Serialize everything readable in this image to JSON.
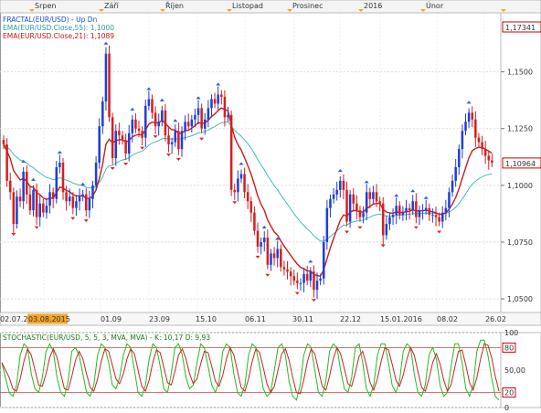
{
  "chart_data": [
    {
      "type": "candlestick",
      "symbol": "EUR/USD",
      "legend": [
        {
          "text": "FRACTAL(EUR/USD) - Up  Dn",
          "color": "#1a4fd0"
        },
        {
          "text": "EMA(EUR/USD.Close,55): 1,1000",
          "color": "#2a9d9d"
        },
        {
          "text": "EMA(EUR/USD.Close,21): 1,1089",
          "color": "#cc1111"
        }
      ],
      "top_axis_months": [
        "Srpen",
        "Září",
        "Říjen",
        "Listopad",
        "Prosinec",
        "2016",
        "Únor"
      ],
      "x_ticks": [
        "02.07.2015",
        "03.08.2015",
        "01.09",
        "23.09",
        "15.10",
        "06.11",
        "30.11",
        "22.12",
        "15.01.2016",
        "08.02",
        "26.02"
      ],
      "highlighted_date": "03.08.2015",
      "y_ticks": [
        "1,0500",
        "1,0750",
        "1,1000",
        "1,1250",
        "1,1500"
      ],
      "ylim": [
        1.044,
        1.176
      ],
      "last_price_label": "1,10964",
      "high_price_label": "1,17341",
      "candles_close": [
        1.118,
        1.102,
        1.097,
        1.083,
        1.095,
        1.093,
        1.106,
        1.096,
        1.089,
        1.098,
        1.086,
        1.092,
        1.088,
        1.091,
        1.097,
        1.094,
        1.108,
        1.11,
        1.097,
        1.093,
        1.095,
        1.09,
        1.093,
        1.095,
        1.096,
        1.089,
        1.094,
        1.1,
        1.11,
        1.126,
        1.137,
        1.158,
        1.13,
        1.112,
        1.124,
        1.122,
        1.12,
        1.114,
        1.123,
        1.129,
        1.125,
        1.124,
        1.121,
        1.135,
        1.138,
        1.132,
        1.126,
        1.128,
        1.133,
        1.122,
        1.118,
        1.119,
        1.124,
        1.116,
        1.124,
        1.128,
        1.126,
        1.129,
        1.131,
        1.134,
        1.125,
        1.129,
        1.134,
        1.138,
        1.136,
        1.14,
        1.139,
        1.13,
        1.131,
        1.098,
        1.097,
        1.103,
        1.105,
        1.097,
        1.093,
        1.088,
        1.08,
        1.073,
        1.075,
        1.077,
        1.065,
        1.07,
        1.068,
        1.072,
        1.064,
        1.063,
        1.062,
        1.06,
        1.058,
        1.057,
        1.057,
        1.061,
        1.058,
        1.062,
        1.054,
        1.058,
        1.059,
        1.075,
        1.09,
        1.094,
        1.096,
        1.098,
        1.102,
        1.098,
        1.084,
        1.096,
        1.092,
        1.089,
        1.086,
        1.088,
        1.097,
        1.094,
        1.097,
        1.093,
        1.092,
        1.078,
        1.083,
        1.086,
        1.087,
        1.091,
        1.087,
        1.088,
        1.09,
        1.089,
        1.093,
        1.086,
        1.089,
        1.089,
        1.09,
        1.087,
        1.087,
        1.086,
        1.084,
        1.088,
        1.09,
        1.097,
        1.102,
        1.108,
        1.116,
        1.124,
        1.128,
        1.132,
        1.129,
        1.121,
        1.119,
        1.116,
        1.113,
        1.111,
        1.11
      ],
      "fractals_up_count": 32,
      "fractals_down_count": 22
    },
    {
      "type": "line",
      "title": "STOCHASTIC(EUR/USD, 5, 5, 3, MVA, MVA) - K: 10,17  D: 9,93",
      "series": [
        {
          "name": "K",
          "color": "#22cc22"
        },
        {
          "name": "D",
          "color": "#cc2222"
        }
      ],
      "y_ticks": [
        "0",
        "20",
        "50,00",
        "80",
        "100"
      ],
      "ylim": [
        0,
        100
      ],
      "levels": [
        20,
        80
      ],
      "k_values": [
        60,
        40,
        20,
        15,
        30,
        70,
        85,
        80,
        45,
        25,
        20,
        40,
        75,
        85,
        75,
        40,
        20,
        15,
        35,
        75,
        80,
        70,
        45,
        20,
        15,
        30,
        70,
        85,
        80,
        60,
        30,
        25,
        40,
        70,
        85,
        80,
        50,
        20,
        15,
        30,
        65,
        85,
        80,
        55,
        25,
        20,
        45,
        80,
        85,
        70,
        40,
        25,
        30,
        60,
        85,
        80,
        55,
        30,
        20,
        35,
        75,
        85,
        80,
        45,
        20,
        15,
        30,
        70,
        85,
        80,
        55,
        25,
        15,
        20,
        50,
        80,
        85,
        70,
        35,
        15,
        10,
        30,
        70,
        85,
        80,
        50,
        20,
        15,
        35,
        75,
        85,
        80,
        50,
        25,
        20,
        40,
        80,
        85,
        60,
        25,
        15,
        30,
        70,
        85,
        85,
        60,
        30,
        20,
        35,
        75,
        85,
        80,
        45,
        20,
        15,
        30,
        70,
        80,
        65,
        30,
        15,
        20,
        55,
        85,
        85,
        60,
        25,
        15,
        30,
        75,
        90,
        90,
        70,
        40,
        15,
        10
      ],
      "k_last": 10.17,
      "d_last": 9.93
    }
  ]
}
